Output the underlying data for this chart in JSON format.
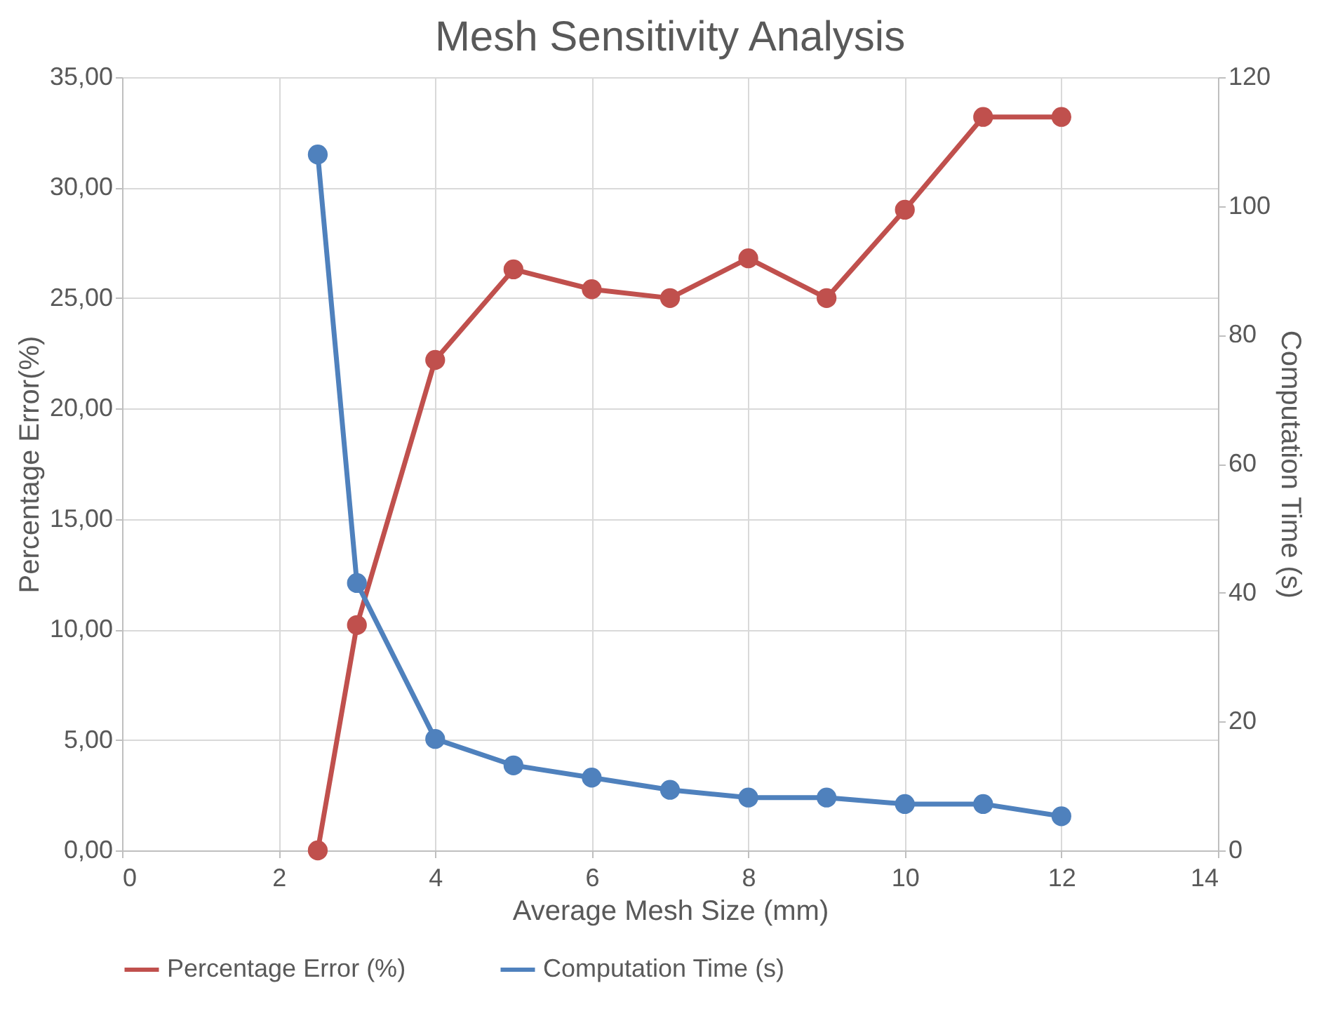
{
  "chart_data": {
    "type": "line",
    "title": "Mesh Sensitivity Analysis",
    "xlabel": "Average Mesh Size (mm)",
    "ylabel": "Percentage Error(%)",
    "y2label": "Computation Time (s)",
    "x": [
      2.5,
      3,
      4,
      5,
      6,
      7,
      8,
      9,
      10,
      11,
      12
    ],
    "series": [
      {
        "name": "Percentage Error (%)",
        "color": "#c0504d",
        "values": [
          0,
          10.2,
          22.2,
          26.3,
          25.4,
          25.0,
          26.8,
          25.0,
          29.0,
          33.2,
          33.2
        ]
      },
      {
        "name": "Computation Time (s)",
        "color": "#4f81bd",
        "axis": "y2",
        "values": [
          108,
          41.5,
          17.3,
          13.2,
          11.3,
          9.4,
          8.2,
          8.2,
          7.2,
          7.2,
          5.3
        ]
      }
    ],
    "xlim": [
      0,
      14
    ],
    "xticks": [
      0,
      2,
      4,
      6,
      8,
      10,
      12,
      14
    ],
    "ylim": [
      0,
      35
    ],
    "yticks": [
      {
        "value": 0,
        "label": "0,00"
      },
      {
        "value": 5,
        "label": "5,00"
      },
      {
        "value": 10,
        "label": "10,00"
      },
      {
        "value": 15,
        "label": "15,00"
      },
      {
        "value": 20,
        "label": "20,00"
      },
      {
        "value": 25,
        "label": "25,00"
      },
      {
        "value": 30,
        "label": "30,00"
      },
      {
        "value": 35,
        "label": "35,00"
      }
    ],
    "y2lim": [
      0,
      120
    ],
    "y2ticks": [
      0,
      20,
      40,
      60,
      80,
      100,
      120
    ],
    "grid": true,
    "legend": "bottom",
    "marker": "circle",
    "line_style": "solid"
  }
}
